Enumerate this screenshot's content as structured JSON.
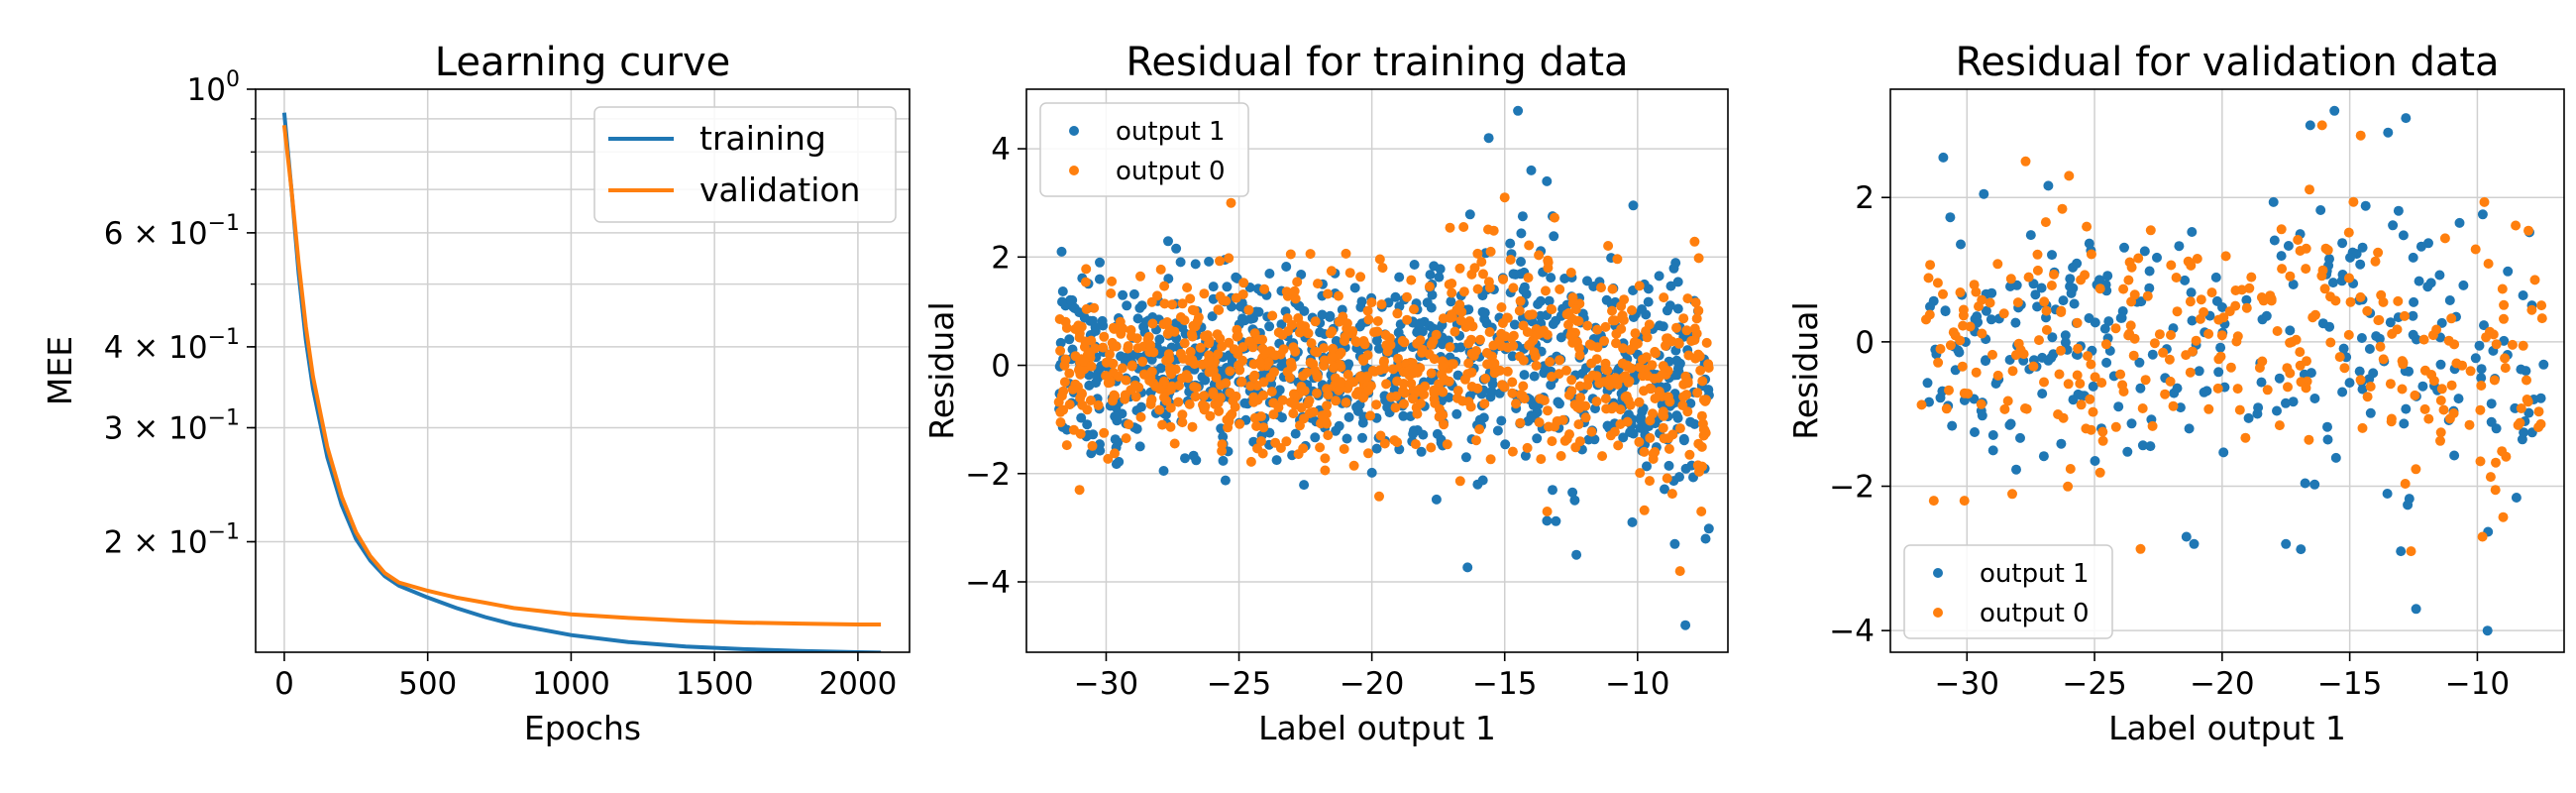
{
  "chart_data": [
    {
      "type": "line",
      "title": "Learning curve",
      "xlabel": "Epochs",
      "ylabel": "MEE",
      "xlim": [
        -100,
        2180
      ],
      "ylim": [
        0.135,
        1.0
      ],
      "yscale": "log",
      "grid": true,
      "legend": "top-right",
      "x_ticks": [
        "0",
        "500",
        "1000",
        "1500",
        "2000"
      ],
      "x_tick_values": [
        0,
        500,
        1000,
        1500,
        2000
      ],
      "y_ticks": [
        {
          "value": 1.0,
          "mantissa": "",
          "base": "10",
          "exp": "0"
        },
        {
          "value": 0.6,
          "mantissa": "6",
          "base": "10",
          "exp": "−1"
        },
        {
          "value": 0.4,
          "mantissa": "4",
          "base": "10",
          "exp": "−1"
        },
        {
          "value": 0.3,
          "mantissa": "3",
          "base": "10",
          "exp": "−1"
        },
        {
          "value": 0.2,
          "mantissa": "2",
          "base": "10",
          "exp": "−1"
        }
      ],
      "series": [
        {
          "name": "training",
          "color": "#1f77b4",
          "x": [
            0,
            25,
            50,
            75,
            100,
            150,
            200,
            250,
            300,
            350,
            400,
            500,
            600,
            700,
            800,
            1000,
            1200,
            1400,
            1600,
            1800,
            2000,
            2080
          ],
          "y": [
            0.92,
            0.7,
            0.52,
            0.41,
            0.345,
            0.27,
            0.228,
            0.202,
            0.187,
            0.177,
            0.171,
            0.164,
            0.158,
            0.153,
            0.149,
            0.1435,
            0.14,
            0.1378,
            0.1365,
            0.1356,
            0.135,
            0.1348
          ]
        },
        {
          "name": "validation",
          "color": "#ff7f0e",
          "x": [
            0,
            25,
            50,
            75,
            100,
            150,
            200,
            250,
            300,
            350,
            400,
            500,
            600,
            700,
            800,
            1000,
            1200,
            1400,
            1600,
            1800,
            2000,
            2080
          ],
          "y": [
            0.88,
            0.7,
            0.54,
            0.43,
            0.36,
            0.28,
            0.235,
            0.207,
            0.19,
            0.179,
            0.173,
            0.168,
            0.164,
            0.161,
            0.158,
            0.1545,
            0.1525,
            0.151,
            0.15,
            0.1495,
            0.149,
            0.149
          ]
        }
      ]
    },
    {
      "type": "scatter",
      "title": "Residual for training data",
      "xlabel": "Label output 1",
      "ylabel": "Residual",
      "xlim": [
        -33.0,
        -6.6
      ],
      "ylim": [
        -5.3,
        5.1
      ],
      "grid": true,
      "legend": "top-left",
      "x_ticks": [
        "−30",
        "−25",
        "−20",
        "−15",
        "−10"
      ],
      "x_tick_values": [
        -30,
        -25,
        -20,
        -15,
        -10
      ],
      "y_ticks": [
        "−4",
        "−2",
        "0",
        "2",
        "4"
      ],
      "y_tick_values": [
        -4,
        -2,
        0,
        2,
        4
      ],
      "x_range_points": [
        -31.8,
        -7.3
      ],
      "series": [
        {
          "name": "output 1",
          "color": "#1f77b4",
          "count": 900,
          "seed": 11,
          "spread": 0.95,
          "extremes": [
            [
              -14.5,
              4.7
            ],
            [
              -15.6,
              4.2
            ],
            [
              -14.0,
              3.6
            ],
            [
              -8.2,
              -4.8
            ],
            [
              -8.6,
              -3.3
            ],
            [
              -12.3,
              -3.5
            ],
            [
              -10.2,
              -2.9
            ],
            [
              -13.2,
              -2.3
            ]
          ]
        },
        {
          "name": "output 0",
          "color": "#ff7f0e",
          "count": 900,
          "seed": 29,
          "spread": 0.85,
          "extremes": [
            [
              -25.3,
              3.0
            ],
            [
              -15.0,
              3.1
            ],
            [
              -8.4,
              -3.8
            ],
            [
              -31.0,
              -2.3
            ],
            [
              -13.4,
              -2.7
            ],
            [
              -7.6,
              -2.7
            ]
          ]
        }
      ]
    },
    {
      "type": "scatter",
      "title": "Residual for validation data",
      "xlabel": "Label output 1",
      "ylabel": "Residual",
      "xlim": [
        -33.0,
        -6.6
      ],
      "ylim": [
        -4.3,
        3.5
      ],
      "grid": true,
      "legend": "bottom-left",
      "x_ticks": [
        "−30",
        "−25",
        "−20",
        "−15",
        "−10"
      ],
      "x_tick_values": [
        -30,
        -25,
        -20,
        -15,
        -10
      ],
      "y_ticks": [
        "−4",
        "−2",
        "0",
        "2"
      ],
      "y_tick_values": [
        -4,
        -2,
        0,
        2
      ],
      "x_range_points": [
        -31.8,
        -7.3
      ],
      "series": [
        {
          "name": "output 1",
          "color": "#1f77b4",
          "count": 300,
          "seed": 47,
          "spread": 0.95,
          "extremes": [
            [
              -15.6,
              3.2
            ],
            [
              -12.8,
              3.1
            ],
            [
              -13.5,
              2.9
            ],
            [
              -9.6,
              -4.0
            ],
            [
              -12.4,
              -3.7
            ],
            [
              -21.1,
              -2.8
            ],
            [
              -21.4,
              -2.7
            ],
            [
              -17.5,
              -2.8
            ],
            [
              -13.0,
              -2.9
            ]
          ]
        },
        {
          "name": "output 0",
          "color": "#ff7f0e",
          "count": 300,
          "seed": 83,
          "spread": 0.9,
          "extremes": [
            [
              -27.7,
              2.5
            ],
            [
              -26.0,
              2.3
            ],
            [
              -31.3,
              -2.2
            ],
            [
              -30.1,
              -2.2
            ],
            [
              -12.6,
              -2.9
            ],
            [
              -9.8,
              -2.7
            ]
          ]
        }
      ]
    }
  ]
}
